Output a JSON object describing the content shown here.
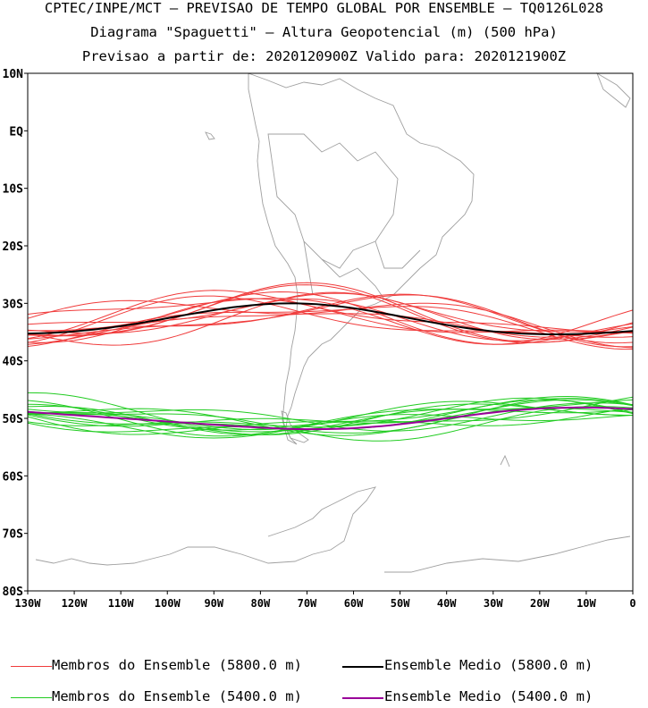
{
  "header": {
    "line1": "CPTEC/INPE/MCT – PREVISAO DE TEMPO GLOBAL POR ENSEMBLE – TQ0126L028",
    "line2": "Diagrama \"Spaguetti\" – Altura Geopotencial (m) (500 hPa)",
    "line3": "Previsao a partir de: 2020120900Z  Valido para: 2020121900Z"
  },
  "map": {
    "lat_labels": [
      "10N",
      "EQ",
      "10S",
      "20S",
      "30S",
      "40S",
      "50S",
      "60S",
      "70S",
      "80S"
    ],
    "lon_labels": [
      "130W",
      "120W",
      "110W",
      "100W",
      "90W",
      "80W",
      "70W",
      "60W",
      "50W",
      "40W",
      "30W",
      "20W",
      "10W",
      "0"
    ],
    "lat_range": [
      -80,
      10
    ],
    "lon_range": [
      -130,
      0
    ],
    "land_color": "#a0a0a0",
    "ensemble_5800_color": "#f03c3c",
    "mean_5800_color": "#000000",
    "ensemble_5400_color": "#22cc22",
    "mean_5400_color": "#990099"
  },
  "legend": {
    "members_5800": "Membros do Ensemble (5800.0 m)",
    "mean_5800": "Ensemble Medio (5800.0 m)",
    "members_5400": "Membros do Ensemble (5400.0 m)",
    "mean_5400": "Ensemble Medio (5400.0 m)"
  }
}
